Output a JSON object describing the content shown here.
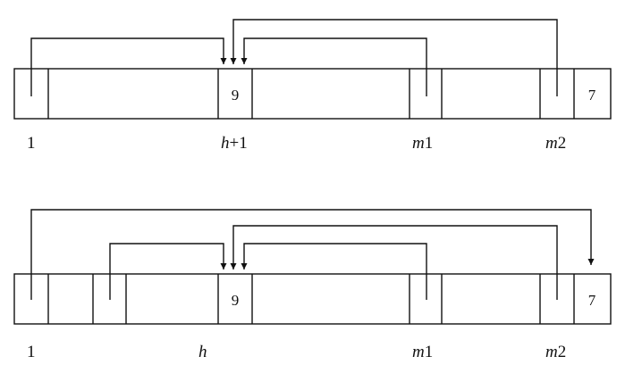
{
  "diagram_1": {
    "cell_value": "9",
    "last_value": "7",
    "labels": {
      "first": "1",
      "h_var": "h",
      "h_suffix": "+1",
      "m1_var": "m",
      "m1_suffix": "1",
      "m2_var": "m",
      "m2_suffix": "2"
    }
  },
  "diagram_2": {
    "cell_value": "9",
    "last_value": "7",
    "labels": {
      "first": "1",
      "h_var": "h",
      "m1_var": "m",
      "m1_suffix": "1",
      "m2_var": "m",
      "m2_suffix": "2"
    }
  },
  "colors": {
    "stroke": "#111111",
    "background": "#ffffff"
  }
}
